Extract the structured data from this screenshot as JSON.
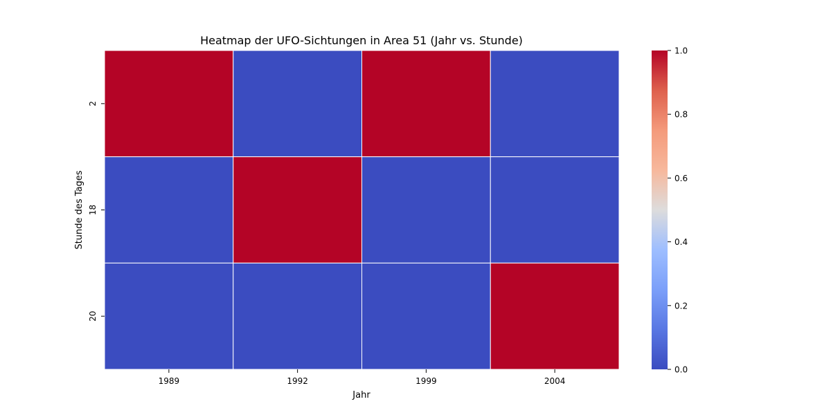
{
  "chart_data": {
    "type": "heatmap",
    "title": "Heatmap der UFO-Sichtungen in Area 51 (Jahr vs. Stunde)",
    "xlabel": "Jahr",
    "ylabel": "Stunde des Tages",
    "x_categories": [
      "1989",
      "1992",
      "1999",
      "2004"
    ],
    "y_categories": [
      "2",
      "18",
      "20"
    ],
    "values": [
      [
        1,
        0,
        1,
        0
      ],
      [
        0,
        1,
        0,
        0
      ],
      [
        0,
        0,
        0,
        1
      ]
    ],
    "colormap": "coolwarm",
    "vmin": 0,
    "vmax": 1,
    "colorbar_ticks": [
      "0.0",
      "0.2",
      "0.4",
      "0.6",
      "0.8",
      "1.0"
    ],
    "colors": {
      "low": "#3b4cc0",
      "high": "#b40426",
      "cell_border": "#ffffff"
    }
  }
}
